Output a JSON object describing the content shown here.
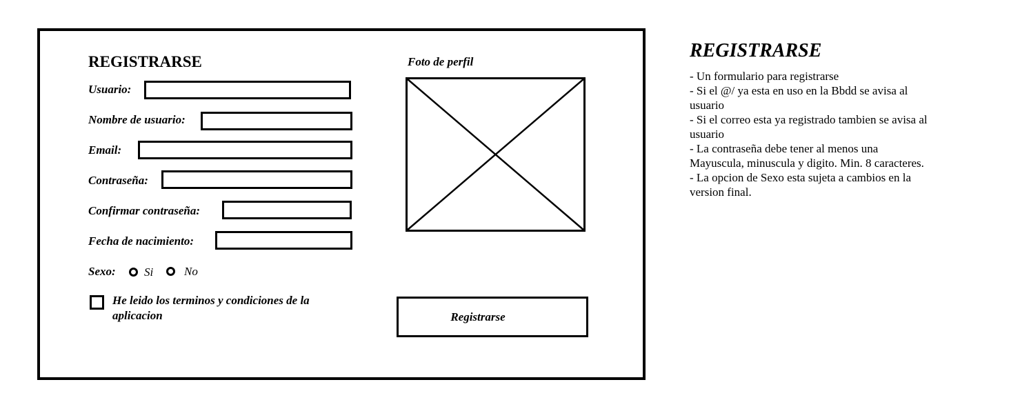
{
  "form": {
    "title": "REGISTRARSE",
    "fields": [
      {
        "label": "Usuario:",
        "value": ""
      },
      {
        "label": "Nombre de usuario:",
        "value": ""
      },
      {
        "label": "Email:",
        "value": ""
      },
      {
        "label": "Contraseña:",
        "value": ""
      },
      {
        "label": "Confirmar contraseña:",
        "value": ""
      },
      {
        "label": "Fecha de nacimiento:",
        "value": ""
      }
    ],
    "sexo": {
      "label": "Sexo:",
      "options": [
        "Si",
        "No"
      ],
      "selected": null
    },
    "terms": {
      "label": "He leido los terminos y condiciones de la aplicacion",
      "checked": false
    },
    "photo": {
      "label": "Foto de perfil",
      "icon": "image-placeholder-icon"
    },
    "submit_label": "Registrarse"
  },
  "notes": {
    "title": "REGISTRARSE",
    "items": [
      "- Un formulario para registrarse",
      "- Si el @/ ya esta en uso en la Bbdd se avisa al usuario",
      "- Si el correo esta ya registrado tambien se avisa al usuario",
      "- La contraseña debe tener al menos una Mayuscula, minuscula y digito. Min. 8 caracteres.",
      "- La opcion de Sexo esta sujeta a cambios en la version final."
    ]
  },
  "colors": {
    "background": "#ffffff",
    "ink": "#000000"
  }
}
